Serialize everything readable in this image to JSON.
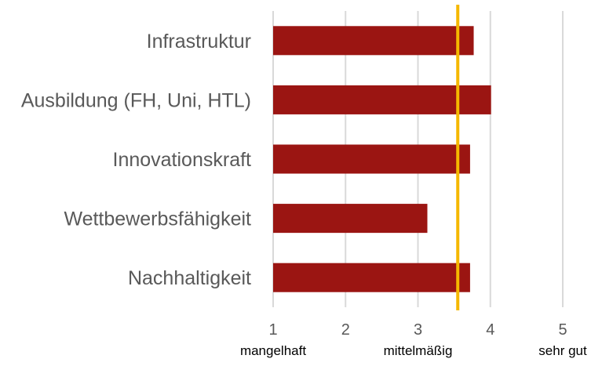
{
  "chart_data": {
    "type": "bar",
    "orientation": "horizontal",
    "categories": [
      "Infrastruktur",
      "Ausbildung (FH, Uni, HTL)",
      "Innovationskraft",
      "Wettbewerbsfähigkeit",
      "Nachhaltigkeit"
    ],
    "values": [
      3.77,
      4.01,
      3.72,
      3.13,
      3.72
    ],
    "xlim": [
      1,
      5
    ],
    "xticks": [
      "1",
      "2",
      "3",
      "4",
      "5"
    ],
    "rating_labels": [
      {
        "at": 1,
        "text": "mangelhaft"
      },
      {
        "at": 3,
        "text": "mittelmäßig"
      },
      {
        "at": 5,
        "text": "sehr gut"
      }
    ],
    "reference_line": {
      "value": 3.55
    },
    "grid": true,
    "legend": "none",
    "colors": {
      "bar": "#9b1512",
      "reference": "#f5b800",
      "grid": "#d9d9d9"
    }
  }
}
